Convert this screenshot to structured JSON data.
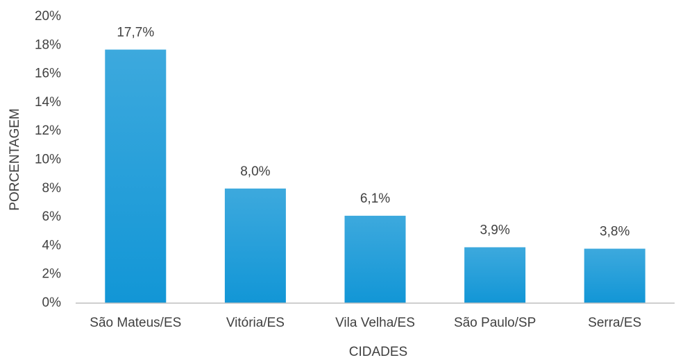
{
  "chart_data": {
    "type": "bar",
    "categories": [
      "São Mateus/ES",
      "Vitória/ES",
      "Vila Velha/ES",
      "São Paulo/SP",
      "Serra/ES"
    ],
    "values": [
      17.7,
      8.0,
      6.1,
      3.9,
      3.8
    ],
    "value_labels": [
      "17,7%",
      "8,0%",
      "6,1%",
      "3,9%",
      "3,8%"
    ],
    "color": "#1296d6",
    "xlabel": "CIDADES",
    "ylabel": "PORCENTAGEM",
    "ylim": [
      0,
      20
    ],
    "yticks": [
      {
        "value": 0,
        "label": "0%"
      },
      {
        "value": 2,
        "label": "2%"
      },
      {
        "value": 4,
        "label": "4%"
      },
      {
        "value": 6,
        "label": "6%"
      },
      {
        "value": 8,
        "label": "8%"
      },
      {
        "value": 10,
        "label": "10%"
      },
      {
        "value": 12,
        "label": "12%"
      },
      {
        "value": 14,
        "label": "14%"
      },
      {
        "value": 16,
        "label": "16%"
      },
      {
        "value": 18,
        "label": "18%"
      },
      {
        "value": 20,
        "label": "20%"
      }
    ],
    "grid": false
  }
}
